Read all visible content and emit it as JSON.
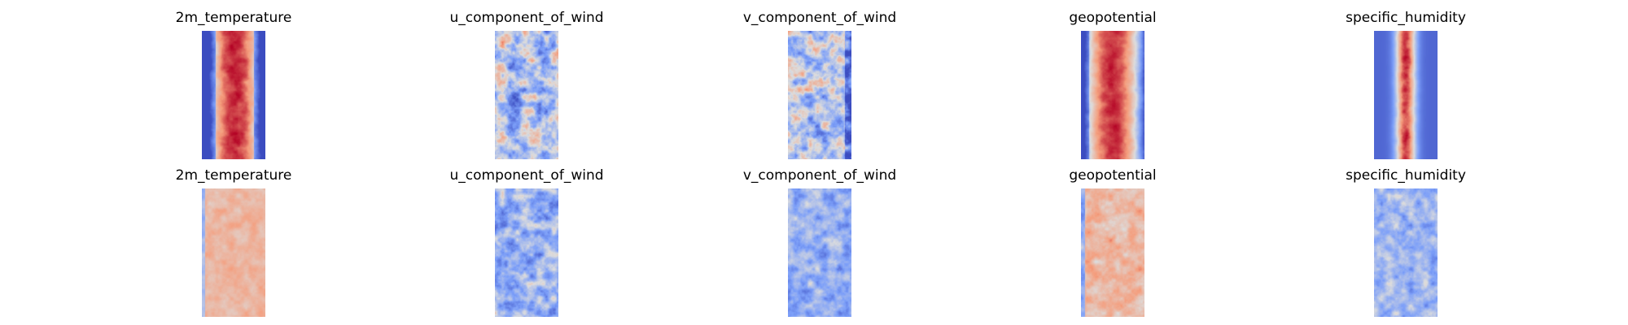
{
  "figure": {
    "rows": [
      {
        "panels": [
          {
            "title": "2m_temperature",
            "pattern": "temp_top"
          },
          {
            "title": "u_component_of_wind",
            "pattern": "u_top"
          },
          {
            "title": "v_component_of_wind",
            "pattern": "v_top"
          },
          {
            "title": "geopotential",
            "pattern": "geo_top"
          },
          {
            "title": "specific_humidity",
            "pattern": "hum_top"
          }
        ]
      },
      {
        "panels": [
          {
            "title": "2m_temperature",
            "pattern": "temp_bot"
          },
          {
            "title": "u_component_of_wind",
            "pattern": "u_bot"
          },
          {
            "title": "v_component_of_wind",
            "pattern": "v_bot"
          },
          {
            "title": "geopotential",
            "pattern": "geo_bot"
          },
          {
            "title": "specific_humidity",
            "pattern": "hum_bot"
          }
        ]
      }
    ],
    "colormap": "coolwarm"
  }
}
